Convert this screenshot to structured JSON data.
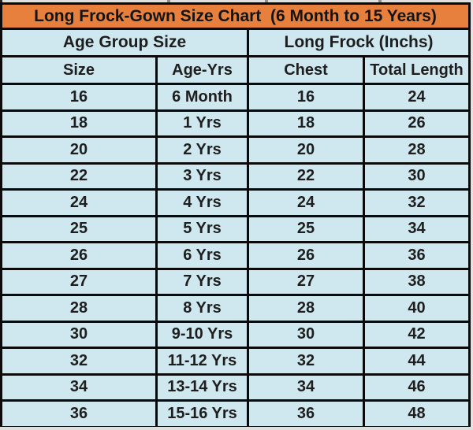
{
  "chart_data": {
    "type": "table",
    "title": "Long Frock-Gown Size Chart  (6 Month to 15 Years)",
    "group_headers": [
      "Age Group Size",
      "Long Frock (Inchs)"
    ],
    "columns": [
      "Size",
      "Age-Yrs",
      "Chest",
      "Total Length"
    ],
    "rows": [
      [
        "16",
        "6 Month",
        "16",
        "24"
      ],
      [
        "18",
        "1 Yrs",
        "18",
        "26"
      ],
      [
        "20",
        "2 Yrs",
        "20",
        "28"
      ],
      [
        "22",
        "3 Yrs",
        "22",
        "30"
      ],
      [
        "24",
        "4 Yrs",
        "24",
        "32"
      ],
      [
        "25",
        "5 Yrs",
        "25",
        "34"
      ],
      [
        "26",
        "6 Yrs",
        "26",
        "36"
      ],
      [
        "27",
        "7 Yrs",
        "27",
        "38"
      ],
      [
        "28",
        "8 Yrs",
        "28",
        "40"
      ],
      [
        "30",
        "9-10 Yrs",
        "30",
        "42"
      ],
      [
        "32",
        "11-12 Yrs",
        "32",
        "44"
      ],
      [
        "34",
        "13-14 Yrs",
        "34",
        "46"
      ],
      [
        "36",
        "15-16 Yrs",
        "36",
        "48"
      ]
    ],
    "units": "inches",
    "layout": "title bar on top, two merged group headers, 4 columns, 13 data rows, all cells center-aligned"
  },
  "colors": {
    "title_bg": "#e8803d",
    "cell_bg": "#cfe7ef",
    "border": "#0b0b0b",
    "text": "#1e1e1e"
  }
}
